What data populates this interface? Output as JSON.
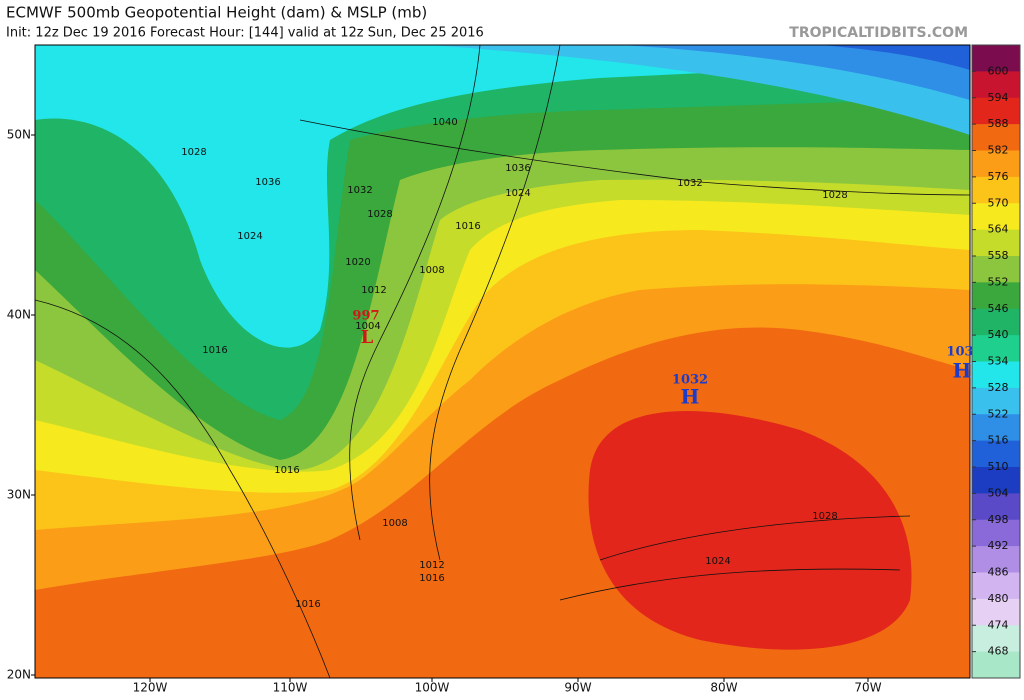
{
  "header": {
    "title": "ECMWF 500mb Geopotential Height (dam) & MSLP (mb)",
    "subtitle": "Init: 12z Dec 19 2016   Forecast Hour: [144]   valid at 12z Sun, Dec 25 2016",
    "brand": "TROPICALTIDBITS.COM"
  },
  "map": {
    "lat_labels": [
      "50N",
      "40N",
      "30N",
      "20N"
    ],
    "lon_labels": [
      "120W",
      "110W",
      "100W",
      "90W",
      "80W",
      "70W"
    ],
    "contour_labels": [
      "1028",
      "1036",
      "1024",
      "1032",
      "1028",
      "1016",
      "1020",
      "1008",
      "1012",
      "1004",
      "1016",
      "1016",
      "1008",
      "1012",
      "1016",
      "1016",
      "1040",
      "1036",
      "1024",
      "1032",
      "1028",
      "1028",
      "1024"
    ],
    "lows": [
      {
        "pressure": "997",
        "symbol": "L"
      }
    ],
    "highs": [
      {
        "pressure": "1032",
        "symbol": "H"
      },
      {
        "pressure": "103",
        "symbol": "H"
      }
    ]
  },
  "colorbar": {
    "ticks": [
      600,
      594,
      588,
      582,
      576,
      570,
      564,
      558,
      552,
      546,
      540,
      534,
      528,
      522,
      516,
      510,
      504,
      498,
      492,
      486,
      480,
      474,
      468
    ],
    "colors": [
      "#7b0d4f",
      "#c8142e",
      "#e3261b",
      "#f16a12",
      "#fb9d17",
      "#fcc419",
      "#f6ea1e",
      "#c5dc2a",
      "#8cc63e",
      "#3aa83c",
      "#1fb466",
      "#1ecf8e",
      "#22e6ea",
      "#3ac0ec",
      "#2f8ee6",
      "#2060d8",
      "#1c3cc2",
      "#5a4ac8",
      "#8a6ad8",
      "#b08ee6",
      "#d2b4f0",
      "#e6d0f4",
      "#c8eee0",
      "#a8e8c8"
    ]
  }
}
